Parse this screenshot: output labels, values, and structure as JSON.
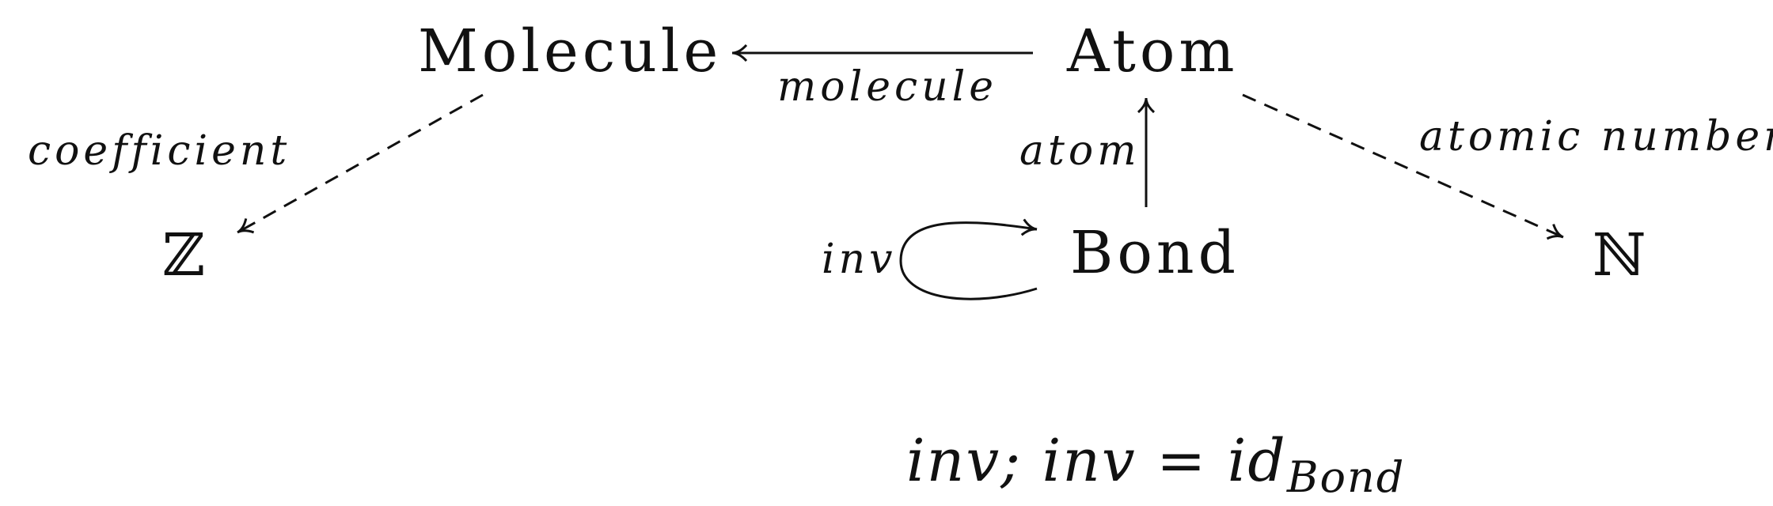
{
  "nodes": {
    "molecule": "Molecule",
    "atom": "Atom",
    "bond": "Bond",
    "integers": "ℤ",
    "naturals": "ℕ"
  },
  "edges": {
    "molecule": "molecule",
    "atom": "atom",
    "inv": "inv",
    "coefficient": "coefficient",
    "atomic_number": "atomic number"
  },
  "equation": {
    "main": "inv; inv = id",
    "subscript": "Bond"
  }
}
